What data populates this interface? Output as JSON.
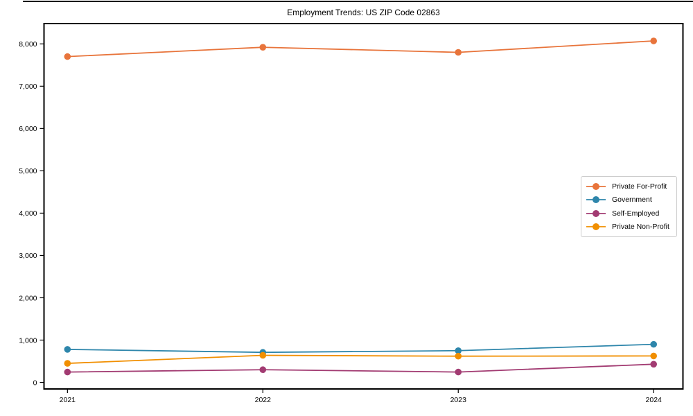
{
  "title": "Employment Trends: US ZIP Code 02863",
  "chart_data": {
    "type": "line",
    "x": [
      2021,
      2022,
      2023,
      2024
    ],
    "x_tick_labels": [
      "2021",
      "2022",
      "2023",
      "2024"
    ],
    "series": [
      {
        "name": "Private For-Profit",
        "color": "#e8743b",
        "values": [
          7700,
          7920,
          7800,
          8070
        ]
      },
      {
        "name": "Government",
        "color": "#2e86ab",
        "values": [
          780,
          710,
          750,
          900
        ]
      },
      {
        "name": "Self-Employed",
        "color": "#a23b72",
        "values": [
          245,
          300,
          245,
          430
        ]
      },
      {
        "name": "Private Non-Profit",
        "color": "#f18f01",
        "values": [
          450,
          640,
          620,
          625
        ]
      }
    ],
    "y_ticks": [
      0,
      1000,
      2000,
      3000,
      4000,
      5000,
      6000,
      7000,
      8000
    ],
    "y_tick_labels": [
      "0",
      "1,000",
      "2,000",
      "3,000",
      "4,000",
      "5,000",
      "6,000",
      "7,000",
      "8,000"
    ],
    "ylim": [
      -155,
      8480
    ],
    "xlim": [
      2020.88,
      2024.15
    ],
    "grid": false,
    "legend_position": "center-right",
    "axis_color": "#000000",
    "tick_label_color": "#000000",
    "legend_border_color": "#cccccc",
    "background": "#ffffff"
  }
}
